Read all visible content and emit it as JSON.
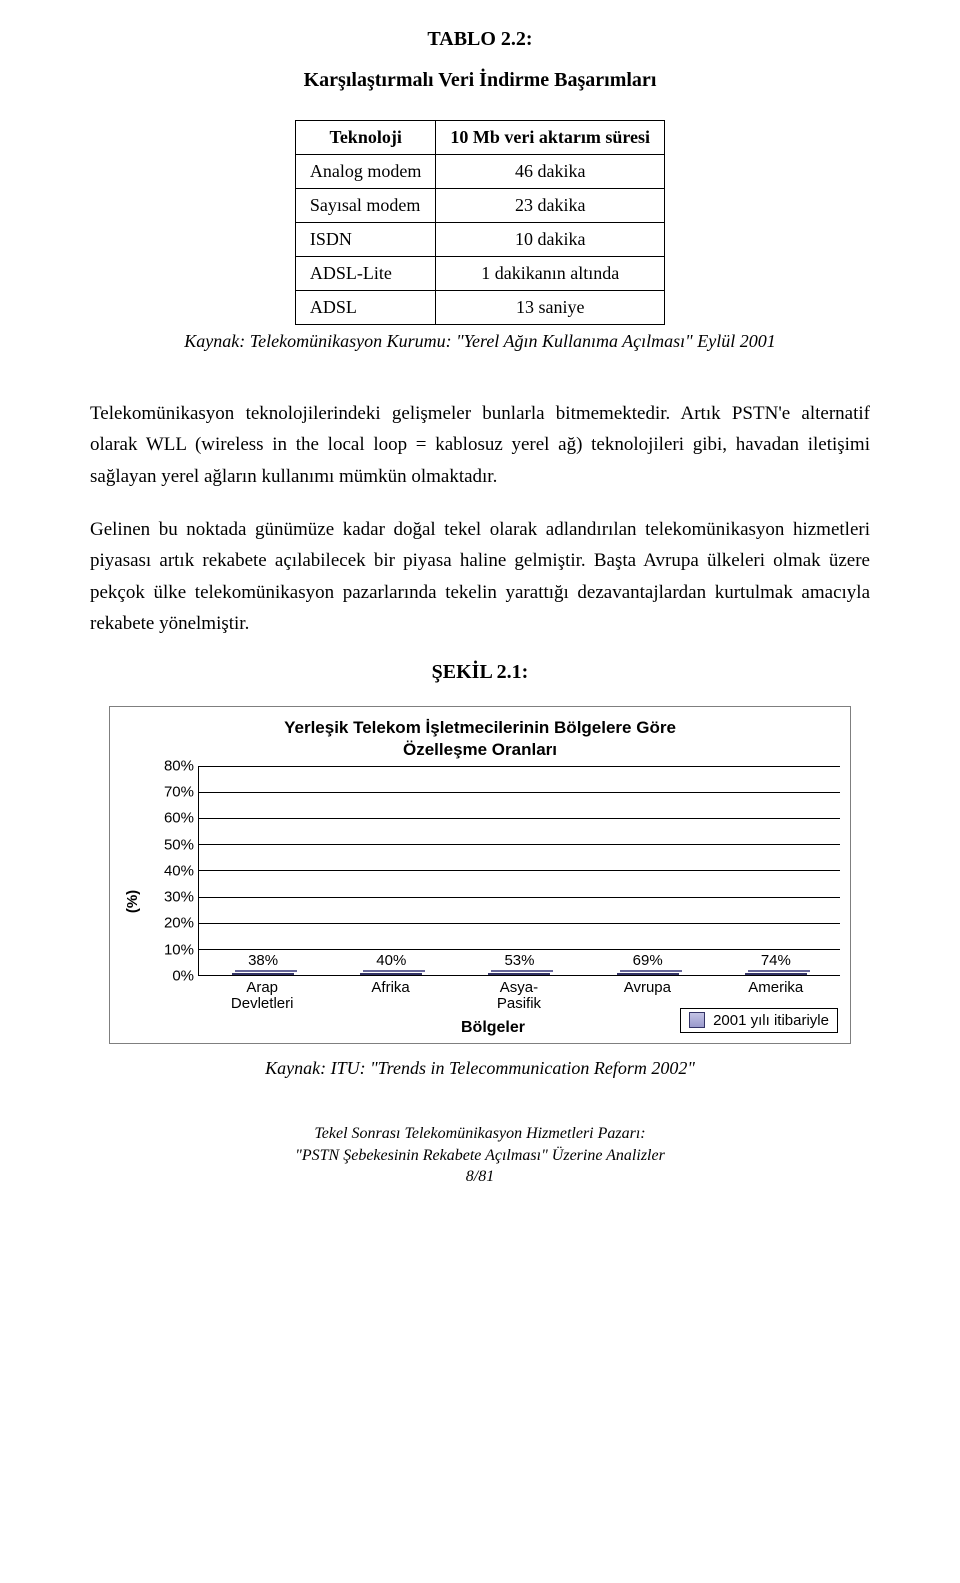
{
  "heading": "TABLO 2.2:",
  "subtitle": "Karşılaştırmalı Veri İndirme Başarımları",
  "table": {
    "headers": [
      "Teknoloji",
      "10 Mb veri aktarım süresi"
    ],
    "rows": [
      [
        "Analog modem",
        "46 dakika"
      ],
      [
        "Sayısal modem",
        "23 dakika"
      ],
      [
        "ISDN",
        "10 dakika"
      ],
      [
        "ADSL-Lite",
        "1 dakikanın altında"
      ],
      [
        "ADSL",
        "13 saniye"
      ]
    ],
    "source": "Kaynak: Telekomünikasyon Kurumu: \"Yerel Ağın Kullanıma Açılması\" Eylül 2001"
  },
  "para1": "Telekomünikasyon teknolojilerindeki gelişmeler bunlarla bitmemektedir. Artık PSTN'e alternatif olarak WLL (wireless in the local loop = kablosuz yerel ağ) teknolojileri gibi, havadan iletişimi sağlayan yerel ağların kullanımı mümkün olmaktadır.",
  "para2": "Gelinen bu noktada günümüze kadar doğal tekel olarak adlandırılan telekomünikasyon hizmetleri piyasası artık rekabete açılabilecek bir piyasa haline gelmiştir. Başta Avrupa ülkeleri olmak üzere pekçok ülke telekomünikasyon pazarlarında tekelin yarattığı dezavantajlardan kurtulmak amacıyla rekabete yönelmiştir.",
  "chart_heading": "ŞEKİL 2.1:",
  "chart": {
    "title_line1": "Yerleşik Telekom İşletmecilerinin Bölgelere Göre",
    "title_line2": "Özelleşme Oranları",
    "y_label": "(%)",
    "x_title": "Bölgeler",
    "y_max": 80,
    "y_ticks": [
      "80%",
      "70%",
      "60%",
      "50%",
      "40%",
      "30%",
      "20%",
      "10%",
      "0%"
    ],
    "categories": [
      "Arap Devletleri",
      "Afrika",
      "Asya- Pasifik",
      "Avrupa",
      "Amerika"
    ],
    "values": [
      38,
      40,
      53,
      69,
      74
    ],
    "value_labels": [
      "38%",
      "40%",
      "53%",
      "69%",
      "74%"
    ],
    "bar_gradient_top": "#c3c3e5",
    "bar_gradient_bottom": "#9999cc",
    "bar_border": "#333366",
    "grid_color": "#000000",
    "legend": "2001 yılı itibariyle",
    "source": "Kaynak: ITU: \"Trends in Telecommunication Reform 2002\""
  },
  "footer": {
    "line1": "Tekel Sonrası Telekomünikasyon Hizmetleri Pazarı:",
    "line2": "\"PSTN Şebekesinin Rekabete Açılması\" Üzerine Analizler",
    "line3": "8/81"
  }
}
